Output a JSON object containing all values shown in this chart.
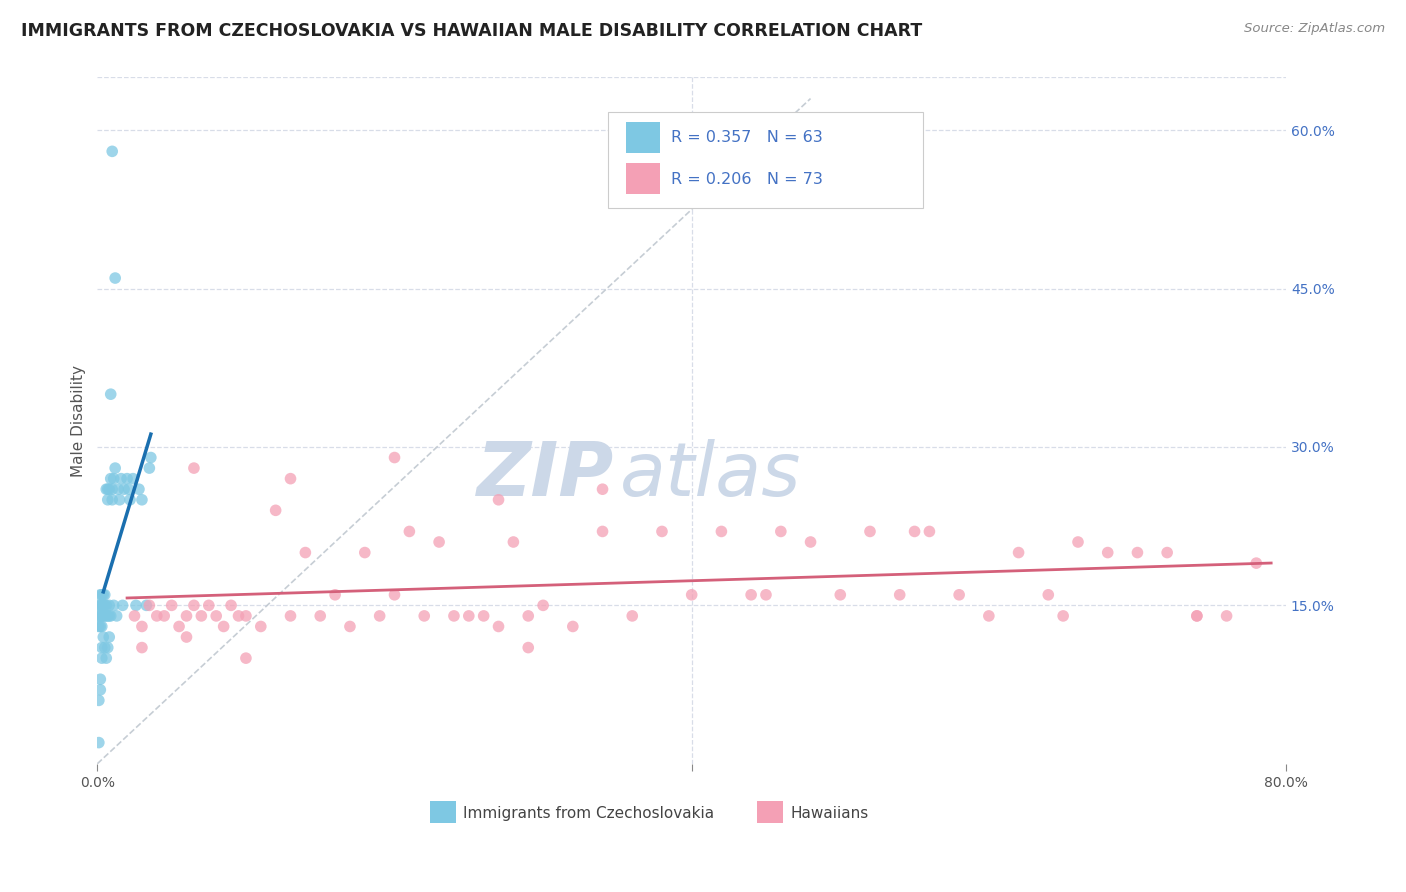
{
  "title": "IMMIGRANTS FROM CZECHOSLOVAKIA VS HAWAIIAN MALE DISABILITY CORRELATION CHART",
  "source": "Source: ZipAtlas.com",
  "ylabel_left": "Male Disability",
  "legend_label1": "Immigrants from Czechoslovakia",
  "legend_label2": "Hawaiians",
  "R1": 0.357,
  "N1": 63,
  "R2": 0.206,
  "N2": 73,
  "xlim": [
    0.0,
    0.8
  ],
  "ylim": [
    0.0,
    0.65
  ],
  "xtick_positions": [
    0.0,
    0.4,
    0.8
  ],
  "xtick_labels": [
    "0.0%",
    "",
    "80.0%"
  ],
  "yticks_right": [
    0.15,
    0.3,
    0.45,
    0.6
  ],
  "yticks_right_labels": [
    "15.0%",
    "30.0%",
    "45.0%",
    "60.0%"
  ],
  "color_blue": "#7ec8e3",
  "color_blue_line": "#1a6faf",
  "color_pink": "#f4a0b5",
  "color_pink_line": "#d4607a",
  "color_diag": "#c0c8d0",
  "watermark": "ZIPatlas",
  "watermark_color": "#ccd8e8",
  "bg_color": "#ffffff",
  "grid_color": "#d8dde8",
  "tick_color": "#4472c4"
}
